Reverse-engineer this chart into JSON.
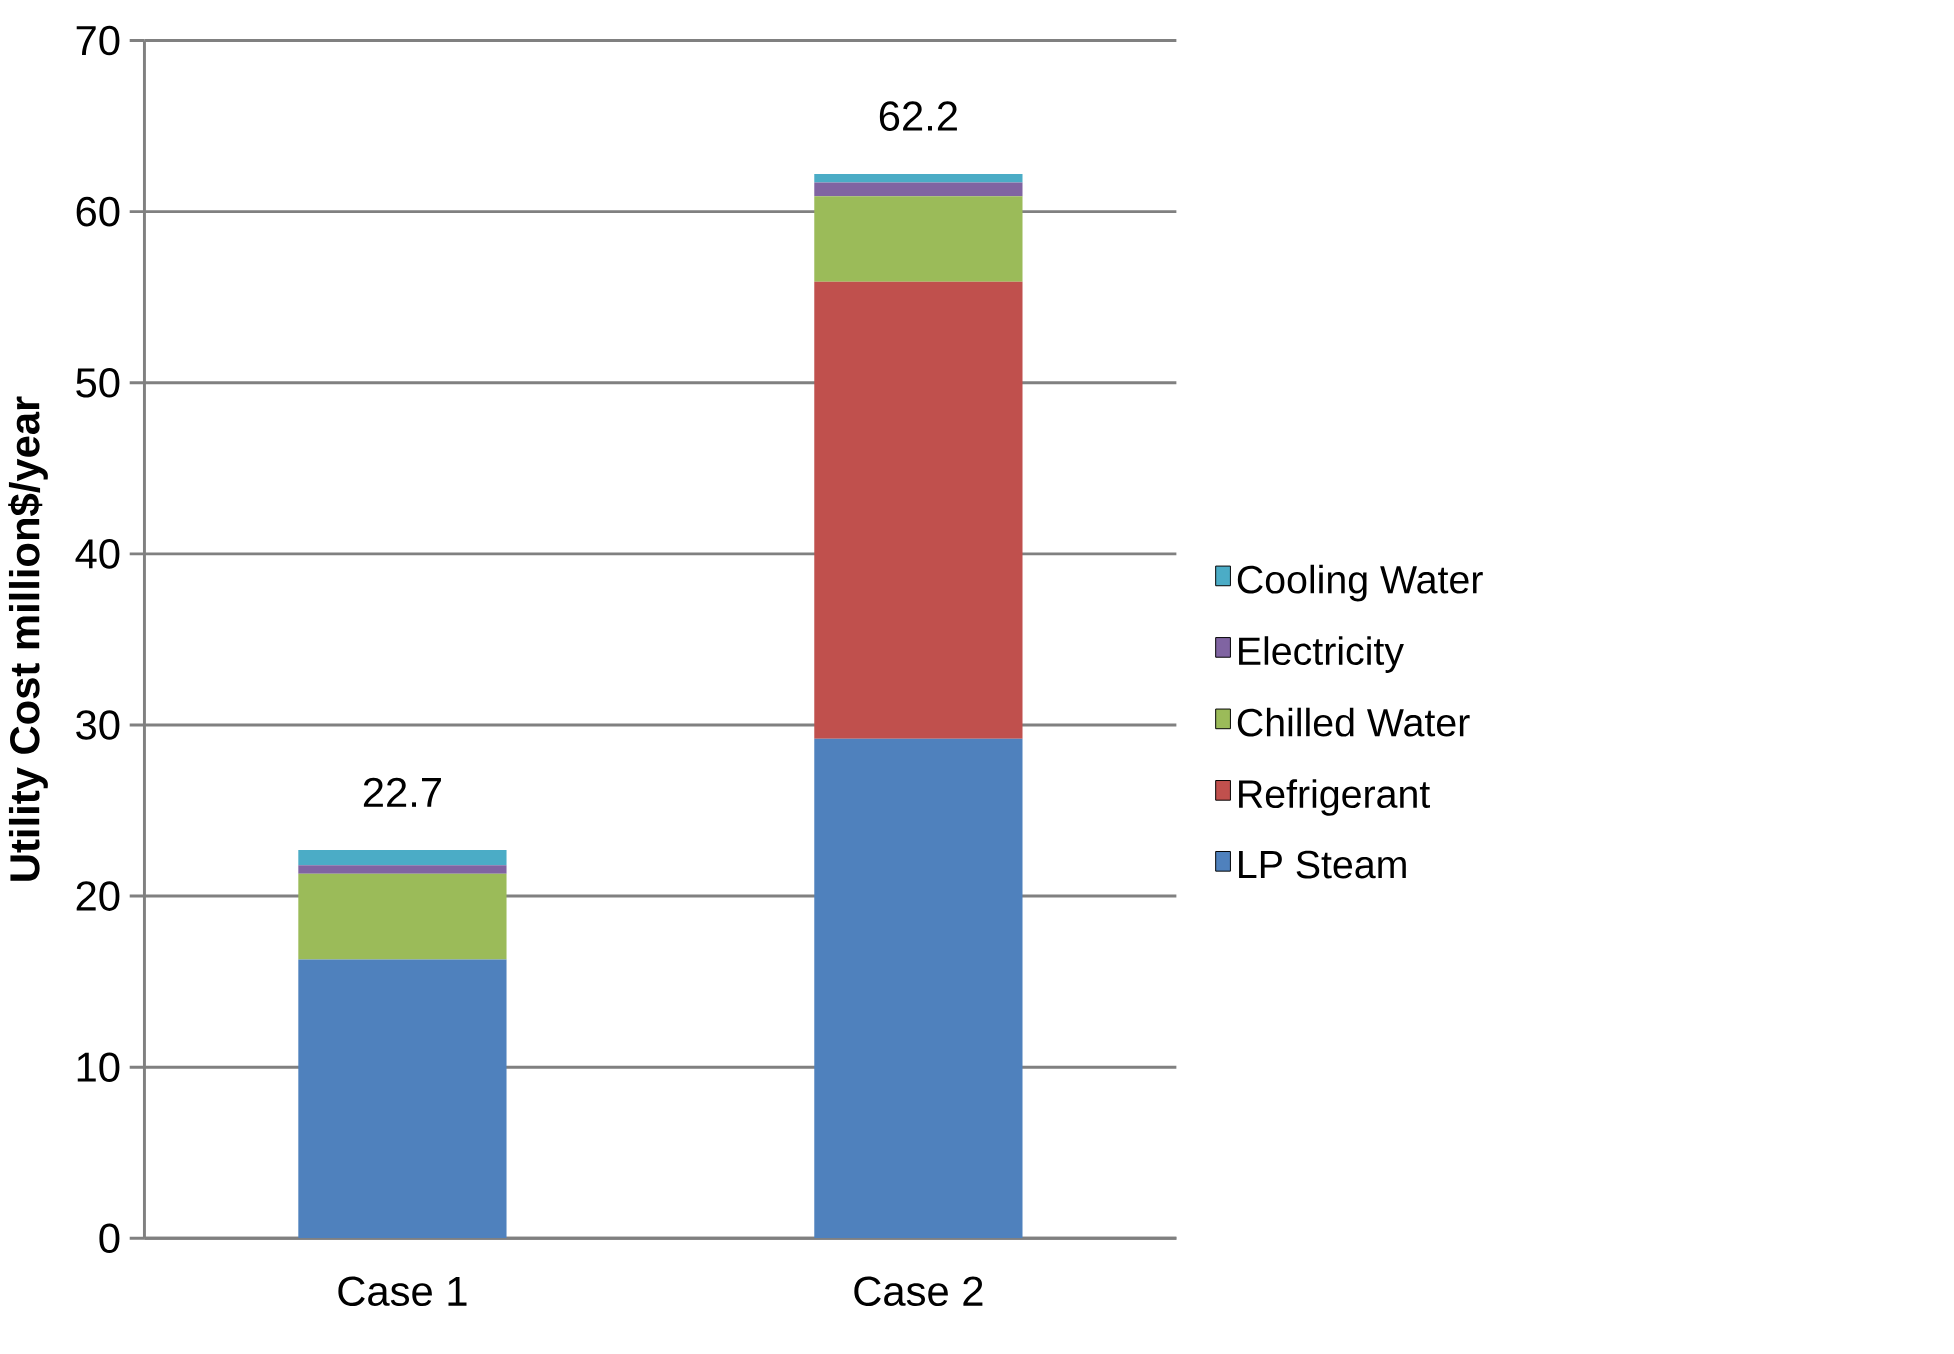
{
  "chart_data": {
    "type": "bar",
    "stacked": true,
    "ylabel": "Utility Cost million$/year",
    "categories": [
      "Case 1",
      "Case 2"
    ],
    "series": [
      {
        "name": "LP Steam",
        "color": "#4f81bd",
        "values": [
          16.3,
          29.2
        ]
      },
      {
        "name": "Refrigerant",
        "color": "#c0504d",
        "values": [
          0,
          26.7
        ]
      },
      {
        "name": "Chilled Water",
        "color": "#9bbb59",
        "values": [
          5.0,
          5.0
        ]
      },
      {
        "name": "Electricity",
        "color": "#8064a2",
        "values": [
          0.5,
          0.8
        ]
      },
      {
        "name": "Cooling Water",
        "color": "#4bacc6",
        "values": [
          0.9,
          0.5
        ]
      }
    ],
    "totals": [
      "22.7",
      "62.2"
    ],
    "ylim": [
      0,
      70
    ],
    "yticks": [
      0,
      10,
      20,
      30,
      40,
      50,
      60,
      70
    ],
    "grid": "y",
    "legend": "right"
  }
}
